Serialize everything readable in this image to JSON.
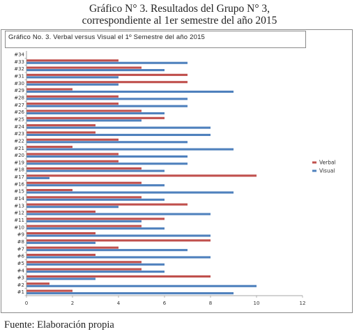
{
  "caption": {
    "line1": "Gráfico N° 3. Resultados del Grupo N° 3,",
    "line2": "correspondiente al 1er semestre del año 2015"
  },
  "source": "Fuente: Elaboración propia",
  "chart_data": {
    "type": "bar",
    "orientation": "horizontal",
    "title": "Gráfico No. 3. Verbal versus Visual el 1º Semestre del año 2015",
    "categories": [
      "#1",
      "#2",
      "#3",
      "#4",
      "#5",
      "#6",
      "#7",
      "#8",
      "#9",
      "#10",
      "#11",
      "#12",
      "#13",
      "#14",
      "#15",
      "#16",
      "#17",
      "#18",
      "#19",
      "#20",
      "#21",
      "#22",
      "#23",
      "#24",
      "#25",
      "#26",
      "#27",
      "#28",
      "#29",
      "#30",
      "#31",
      "#32",
      "#33",
      "#34"
    ],
    "series": [
      {
        "name": "Verbal",
        "color": "#c0504d",
        "values": [
          2,
          1,
          8,
          5,
          5,
          3,
          4,
          8,
          3,
          5,
          6,
          3,
          7,
          5,
          2,
          5,
          10,
          5,
          4,
          4,
          2,
          4,
          3,
          3,
          6,
          5,
          4,
          4,
          2,
          7,
          7,
          5,
          4,
          0
        ]
      },
      {
        "name": "Visual",
        "color": "#4f81bd",
        "values": [
          9,
          10,
          3,
          6,
          6,
          8,
          7,
          3,
          8,
          6,
          5,
          8,
          4,
          6,
          9,
          6,
          1,
          6,
          7,
          7,
          9,
          7,
          8,
          8,
          5,
          6,
          7,
          7,
          9,
          4,
          4,
          6,
          7,
          0
        ]
      }
    ],
    "xlim": [
      0,
      12
    ],
    "xticks": [
      "0",
      "2",
      "4",
      "6",
      "8",
      "10",
      "12"
    ],
    "legend_position": "right",
    "grid": false
  }
}
